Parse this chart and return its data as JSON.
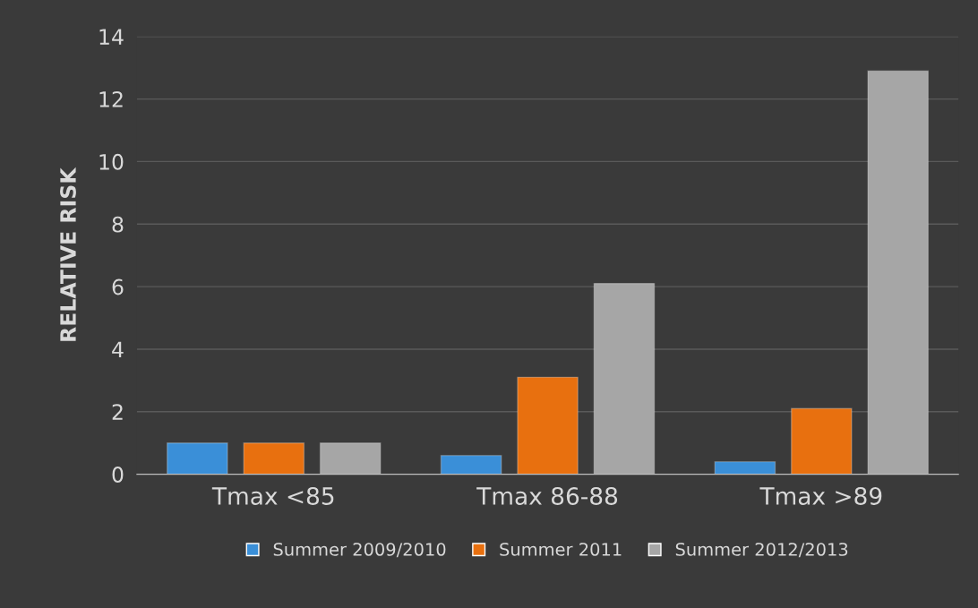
{
  "chart_data": {
    "type": "bar",
    "ylabel": "RELATIVE RISK",
    "categories": [
      "Tmax <85",
      "Tmax 86-88",
      "Tmax >89"
    ],
    "series": [
      {
        "name": "Summer 2009/2010",
        "color": "#3a8fd8",
        "values": [
          1.0,
          0.6,
          0.4
        ]
      },
      {
        "name": "Summer 2011",
        "color": "#e8700f",
        "values": [
          1.0,
          3.1,
          2.1
        ]
      },
      {
        "name": "Summer 2012/2013",
        "color": "#a6a6a6",
        "values": [
          1.0,
          6.1,
          12.9
        ]
      }
    ],
    "ylim": [
      0,
      14
    ],
    "yticks": [
      0,
      2,
      4,
      6,
      8,
      10,
      12,
      14
    ],
    "grid": "y",
    "legend": "bottom"
  }
}
